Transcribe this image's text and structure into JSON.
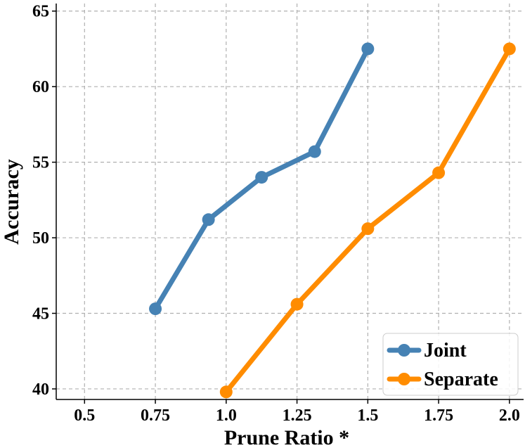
{
  "chart_data": {
    "type": "line",
    "xlabel": "Prune Ratio *",
    "ylabel": "Accuracy",
    "xlim": [
      0.4,
      2.05
    ],
    "ylim": [
      39.3,
      65.5
    ],
    "xticks": [
      0.5,
      0.75,
      1.0,
      1.25,
      1.5,
      1.75,
      2.0
    ],
    "xtick_labels": [
      "0.5",
      "0.75",
      "1.0",
      "1.25",
      "1.5",
      "1.75",
      "2.0"
    ],
    "yticks": [
      40,
      45,
      50,
      55,
      60,
      65
    ],
    "ytick_labels": [
      "40",
      "45",
      "50",
      "55",
      "60",
      "65"
    ],
    "grid": true,
    "legend_position": "bottom-right",
    "series": [
      {
        "name": "Joint",
        "color": "#4682b4",
        "x": [
          0.75,
          0.9375,
          1.125,
          1.3125,
          1.5
        ],
        "y": [
          45.3,
          51.2,
          54.0,
          55.7,
          62.5
        ]
      },
      {
        "name": "Separate",
        "color": "#ff8c00",
        "x": [
          1.0,
          1.25,
          1.5,
          1.75,
          2.0
        ],
        "y": [
          39.8,
          45.6,
          50.6,
          54.3,
          62.5
        ]
      }
    ]
  }
}
